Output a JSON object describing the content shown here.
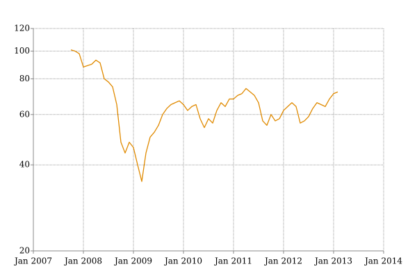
{
  "chart_data": {
    "type": "line",
    "log_y": true,
    "grid": true,
    "color": "#e08a00",
    "x": [
      "2007-10",
      "2007-11",
      "2007-12",
      "2008-01",
      "2008-02",
      "2008-03",
      "2008-04",
      "2008-05",
      "2008-06",
      "2008-07",
      "2008-08",
      "2008-09",
      "2008-10",
      "2008-11",
      "2008-12",
      "2009-01",
      "2009-02",
      "2009-03",
      "2009-04",
      "2009-05",
      "2009-06",
      "2009-07",
      "2009-08",
      "2009-09",
      "2009-10",
      "2009-11",
      "2009-12",
      "2010-01",
      "2010-02",
      "2010-03",
      "2010-04",
      "2010-05",
      "2010-06",
      "2010-07",
      "2010-08",
      "2010-09",
      "2010-10",
      "2010-11",
      "2010-12",
      "2011-01",
      "2011-02",
      "2011-03",
      "2011-04",
      "2011-05",
      "2011-06",
      "2011-07",
      "2011-08",
      "2011-09",
      "2011-10",
      "2011-11",
      "2011-12",
      "2012-01",
      "2012-02",
      "2012-03",
      "2012-04",
      "2012-05",
      "2012-06",
      "2012-07",
      "2012-08",
      "2012-09",
      "2012-10",
      "2012-11",
      "2012-12",
      "2013-01",
      "2013-02"
    ],
    "values": [
      101,
      100,
      98,
      88,
      89,
      90,
      93,
      91,
      80,
      78,
      75,
      65,
      48,
      44,
      48,
      46,
      40,
      35,
      44,
      50,
      52,
      55,
      60,
      63,
      65,
      66,
      67,
      65,
      62,
      64,
      65,
      58,
      54,
      58,
      56,
      62,
      66,
      64,
      68,
      68,
      70,
      71,
      74,
      72,
      70,
      66,
      57,
      55,
      60,
      57,
      58,
      62,
      64,
      66,
      64,
      56,
      57,
      59,
      63,
      66,
      65,
      64,
      68,
      71,
      72
    ],
    "xlim": [
      "2007-01",
      "2014-01"
    ],
    "xticks": [
      {
        "value": "2007-01",
        "label": "Jan 2007"
      },
      {
        "value": "2008-01",
        "label": "Jan 2008"
      },
      {
        "value": "2009-01",
        "label": "Jan 2009"
      },
      {
        "value": "2010-01",
        "label": "Jan 2010"
      },
      {
        "value": "2011-01",
        "label": "Jan 2011"
      },
      {
        "value": "2012-01",
        "label": "Jan 2012"
      },
      {
        "value": "2013-01",
        "label": "Jan 2013"
      },
      {
        "value": "2014-01",
        "label": "Jan 2014"
      }
    ],
    "ylim": [
      20,
      120
    ],
    "yticks": [
      20,
      40,
      60,
      80,
      100,
      120
    ]
  }
}
